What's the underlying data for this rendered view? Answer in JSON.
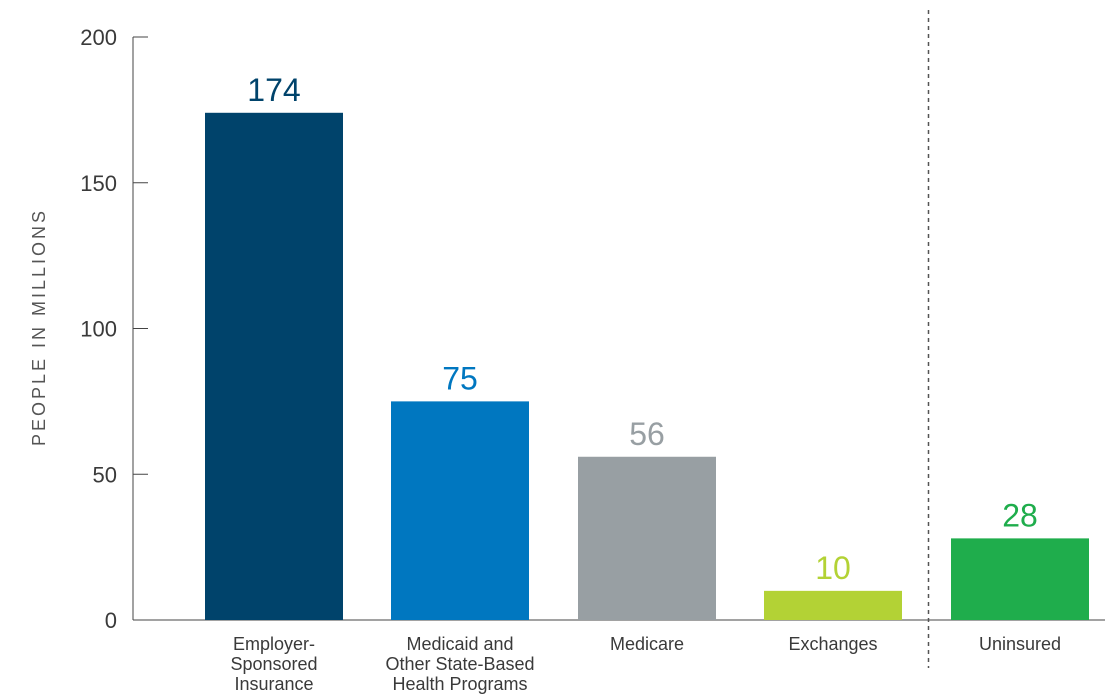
{
  "chart_data": {
    "type": "bar",
    "title": "",
    "xlabel": "",
    "ylabel": "PEOPLE IN MILLIONS",
    "ylim": [
      0,
      200
    ],
    "yticks": [
      0,
      50,
      100,
      150,
      200
    ],
    "grid": false,
    "legend": "none",
    "categories": [
      "Employer-Sponsored Insurance",
      "Medicaid and Other State-Based Health Programs",
      "Medicare",
      "Exchanges",
      "Uninsured"
    ],
    "category_label_lines": [
      [
        "Employer-",
        "Sponsored",
        "Insurance"
      ],
      [
        "Medicaid and",
        "Other State-Based",
        "Health Programs"
      ],
      [
        "Medicare"
      ],
      [
        "Exchanges"
      ],
      [
        "Uninsured"
      ]
    ],
    "values": [
      174,
      75,
      56,
      10,
      28
    ],
    "value_labels": [
      "174",
      "75",
      "56",
      "10",
      "28"
    ],
    "colors": [
      "#00436b",
      "#0077c0",
      "#989fa3",
      "#b3d235",
      "#1fad4c"
    ],
    "separator": {
      "style": "dashed",
      "between": [
        "Exchanges",
        "Uninsured"
      ]
    }
  }
}
